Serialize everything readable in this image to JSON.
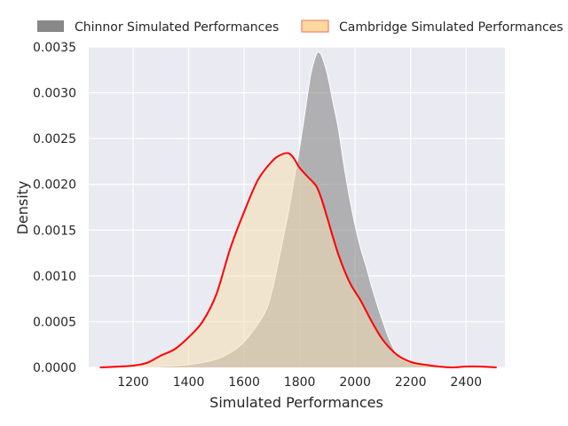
{
  "chart_data": {
    "type": "area",
    "xlabel": "Simulated Performances",
    "ylabel": "Density",
    "xlim": [
      1040,
      2540
    ],
    "ylim": [
      0,
      0.0035
    ],
    "xticks": [
      1200,
      1400,
      1600,
      1800,
      2000,
      2200,
      2400
    ],
    "xtick_labels": [
      "1200",
      "1400",
      "1600",
      "1800",
      "2000",
      "2200",
      "2400"
    ],
    "yticks": [
      0,
      0.0005,
      0.001,
      0.0015,
      0.002,
      0.0025,
      0.003,
      0.0035
    ],
    "ytick_labels": [
      "0.0000",
      "0.0005",
      "0.0010",
      "0.0015",
      "0.0020",
      "0.0025",
      "0.0030",
      "0.0035"
    ],
    "grid": true,
    "legend_placement": "top",
    "series": [
      {
        "name": "Chinnor Simulated Performances",
        "fill": "#888888",
        "line": "#ffffff",
        "x": [
          1250,
          1300,
          1400,
          1500,
          1560,
          1600,
          1640,
          1680,
          1700,
          1720,
          1740,
          1760,
          1780,
          1800,
          1820,
          1840,
          1860,
          1870,
          1880,
          1900,
          1920,
          1940,
          1960,
          1980,
          2000,
          2020,
          2040,
          2060,
          2080,
          2100,
          2120,
          2140,
          2160,
          2180,
          2200,
          2220,
          2250,
          2300,
          2350,
          2400
        ],
        "values": [
          0.0,
          1e-05,
          3e-05,
          9e-05,
          0.00018,
          0.00028,
          0.00043,
          0.00063,
          0.00083,
          0.0011,
          0.0014,
          0.0017,
          0.00205,
          0.0024,
          0.0028,
          0.0032,
          0.00342,
          0.00344,
          0.0034,
          0.0032,
          0.0029,
          0.0026,
          0.0022,
          0.00185,
          0.00155,
          0.0013,
          0.0011,
          0.00088,
          0.00068,
          0.0005,
          0.00033,
          0.0002,
          0.00011,
          7e-05,
          5e-05,
          4e-05,
          2e-05,
          1e-05,
          0.0,
          0.0
        ]
      },
      {
        "name": "Cambridge Simulated Performances",
        "fill": "#f5deb3",
        "line": "#ff0000",
        "x": [
          1080,
          1150,
          1200,
          1250,
          1300,
          1350,
          1400,
          1450,
          1500,
          1550,
          1600,
          1650,
          1700,
          1730,
          1760,
          1780,
          1800,
          1830,
          1860,
          1880,
          1900,
          1940,
          1980,
          2020,
          2060,
          2100,
          2150,
          2200,
          2250,
          2300,
          2350,
          2400,
          2450,
          2510
        ],
        "values": [
          0.0,
          1e-05,
          2e-05,
          5e-05,
          0.00013,
          0.0002,
          0.00033,
          0.0005,
          0.0008,
          0.0013,
          0.0017,
          0.00205,
          0.00225,
          0.00232,
          0.00234,
          0.00228,
          0.00218,
          0.00208,
          0.00198,
          0.00183,
          0.00163,
          0.00123,
          0.00093,
          0.00073,
          0.0005,
          0.0003,
          0.00014,
          6e-05,
          3e-05,
          1e-05,
          0.0,
          1e-05,
          1e-05,
          0.0
        ]
      }
    ]
  }
}
